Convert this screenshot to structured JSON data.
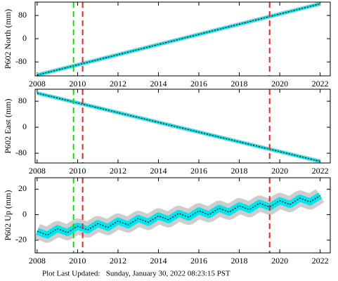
{
  "chart_data": [
    {
      "type": "line",
      "y_label": "P602 North (mm)",
      "x": [
        2008,
        2009,
        2010,
        2011,
        2012,
        2013,
        2014,
        2015,
        2016,
        2017,
        2018,
        2019,
        2020,
        2021,
        2022
      ],
      "values": [
        -125,
        -107.5,
        -90,
        -72.5,
        -55,
        -37.5,
        -20,
        -2.5,
        15,
        32.5,
        50,
        67.5,
        85,
        102.5,
        120
      ],
      "color": "#00e5ee",
      "xlim": [
        2007.9,
        2022.5
      ],
      "xticks": [
        2008,
        2010,
        2012,
        2014,
        2016,
        2018,
        2020,
        2022
      ],
      "ylim": [
        -128,
        126
      ],
      "yticks": [
        -80,
        0,
        80
      ],
      "vlines": [
        {
          "x": 2009.8,
          "color": "#22cc22"
        },
        {
          "x": 2010.25,
          "color": "#ee2222"
        },
        {
          "x": 2019.5,
          "color": "#ee2222"
        }
      ]
    },
    {
      "type": "line",
      "y_label": "P602 East (mm)",
      "x": [
        2008,
        2009,
        2010,
        2011,
        2012,
        2013,
        2014,
        2015,
        2016,
        2017,
        2018,
        2019,
        2020,
        2021,
        2022
      ],
      "values": [
        105,
        90,
        75,
        60,
        45,
        30,
        15,
        0,
        -15,
        -30,
        -45,
        -60,
        -75,
        -90,
        -105
      ],
      "color": "#00e5ee",
      "xlim": [
        2007.9,
        2022.5
      ],
      "xticks": [
        2008,
        2010,
        2012,
        2014,
        2016,
        2018,
        2020,
        2022
      ],
      "ylim": [
        -110,
        117
      ],
      "yticks": [
        -80,
        0,
        80
      ],
      "vlines": [
        {
          "x": 2009.8,
          "color": "#22cc22"
        },
        {
          "x": 2010.25,
          "color": "#ee2222"
        },
        {
          "x": 2019.5,
          "color": "#ee2222"
        }
      ]
    },
    {
      "type": "line",
      "y_label": "P602 Up (mm)",
      "x": [
        2008,
        2008.5,
        2009,
        2009.5,
        2010,
        2010.5,
        2011,
        2011.5,
        2012,
        2012.5,
        2013,
        2013.5,
        2014,
        2014.5,
        2015,
        2015.5,
        2016,
        2016.5,
        2017,
        2017.5,
        2018,
        2018.5,
        2019,
        2019.5,
        2020,
        2020.5,
        2021,
        2021.5,
        2022
      ],
      "values": [
        -13,
        -16,
        -11,
        -14,
        -9,
        -12,
        -7,
        -10,
        -5,
        -8,
        -3,
        -6,
        -1,
        -4,
        1,
        -2,
        3,
        0,
        5,
        2,
        7,
        4,
        9,
        6,
        11,
        8,
        13,
        10,
        15
      ],
      "color": "#00e5ee",
      "xlim": [
        2007.9,
        2022.5
      ],
      "xticks": [
        2008,
        2010,
        2012,
        2014,
        2016,
        2018,
        2020,
        2022
      ],
      "ylim": [
        -30,
        29
      ],
      "yticks": [
        -20,
        0,
        20
      ],
      "vlines": [
        {
          "x": 2009.8,
          "color": "#22cc22"
        },
        {
          "x": 2010.25,
          "color": "#ee2222"
        },
        {
          "x": 2019.5,
          "color": "#ee2222"
        }
      ]
    }
  ],
  "footer": "Plot Last Updated:   Sunday, January 30, 2022 08:23:15 PST"
}
